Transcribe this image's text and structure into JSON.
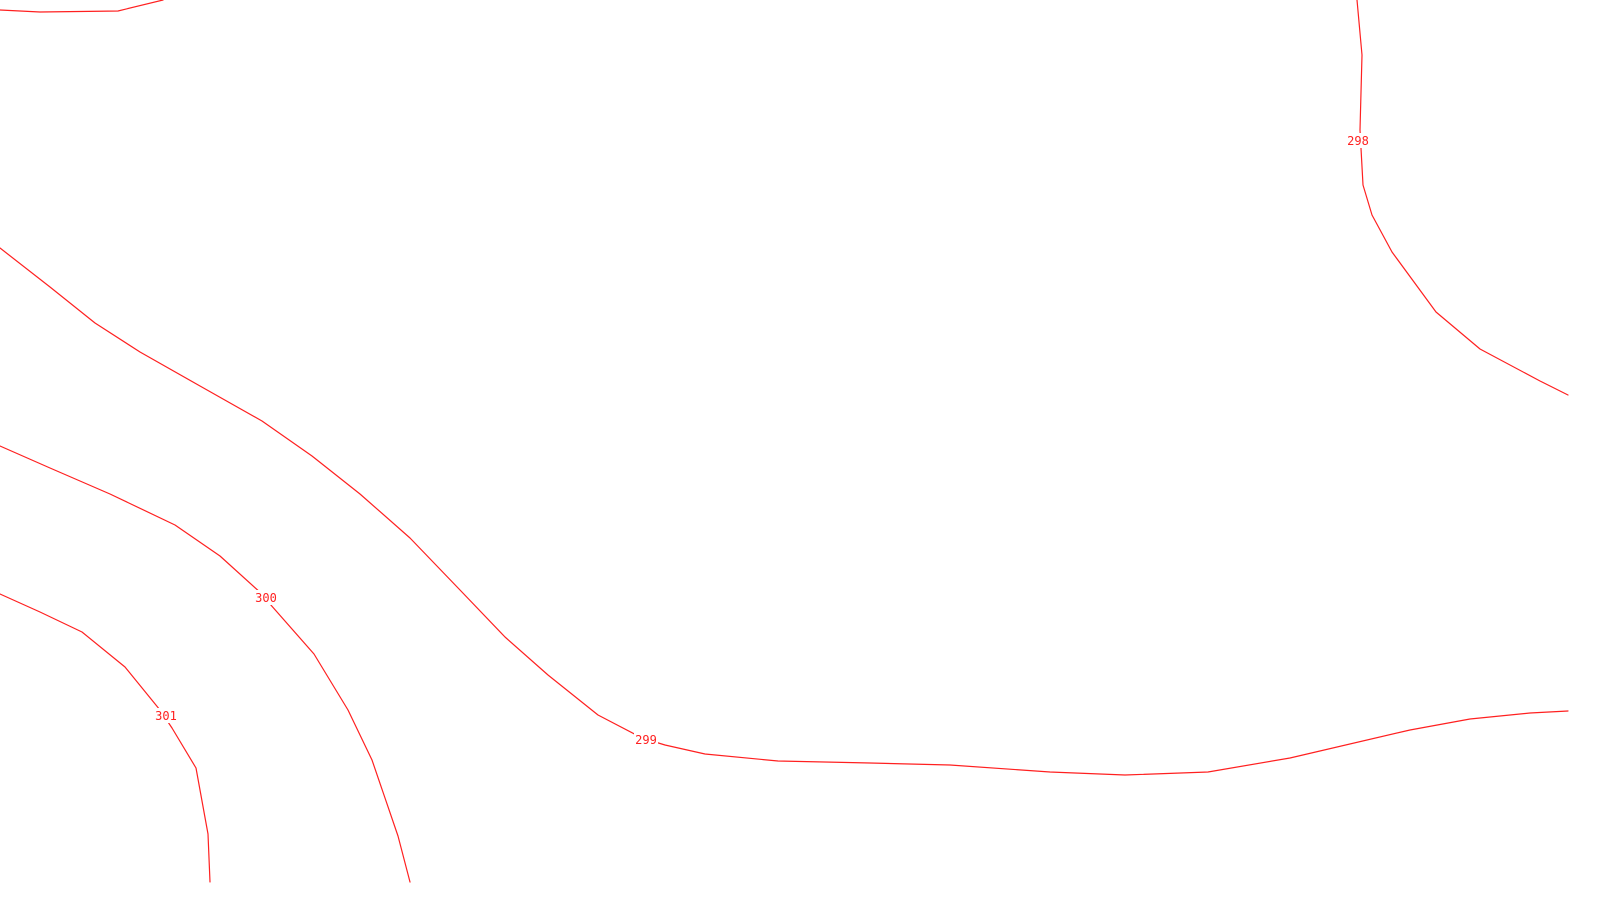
{
  "map": {
    "line_color": "#ff2020",
    "background": "#ffffff",
    "contours": [
      {
        "id": "contour-top-left-edge",
        "label": ""
      },
      {
        "id": "contour-298",
        "label": "298"
      },
      {
        "id": "contour-299",
        "label": "299"
      },
      {
        "id": "contour-300",
        "label": "300"
      },
      {
        "id": "contour-301",
        "label": "301"
      }
    ]
  }
}
